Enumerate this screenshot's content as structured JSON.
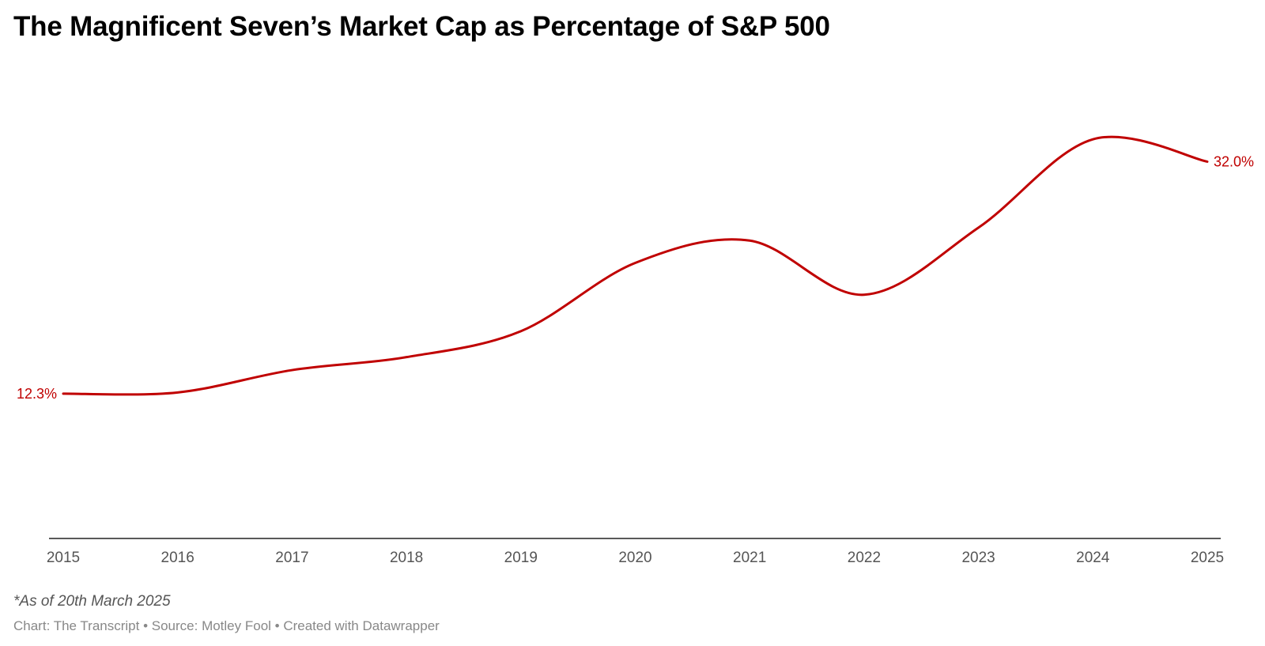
{
  "title": "The Magnificent Seven’s Market Cap as Percentage of S&P 500",
  "note": "*As of 20th March 2025",
  "credits": "Chart: The Transcript • Source: Motley Fool • Created with Datawrapper",
  "colors": {
    "series": "#c00000",
    "axis": "#222222",
    "tick_label": "#555555"
  },
  "chart_data": {
    "type": "line",
    "title": "The Magnificent Seven’s Market Cap as Percentage of S&P 500",
    "xlabel": "",
    "ylabel": "",
    "x": [
      2015,
      2016,
      2017,
      2018,
      2019,
      2020,
      2021,
      2022,
      2023,
      2024,
      2025
    ],
    "x_tick_labels": [
      "2015",
      "2016",
      "2017",
      "2018",
      "2019",
      "2020",
      "2021",
      "2022",
      "2023",
      "2024",
      "2025"
    ],
    "series": [
      {
        "values": [
          12.3,
          12.4,
          14.3,
          15.4,
          17.6,
          23.4,
          25.3,
          20.7,
          26.4,
          33.9,
          32.0
        ]
      }
    ],
    "data_labels": [
      {
        "x": 2015,
        "text": "12.3%"
      },
      {
        "x": 2025,
        "text": "32.0%"
      }
    ],
    "ylim": [
      0,
      37
    ],
    "grid": false,
    "legend": "none"
  }
}
